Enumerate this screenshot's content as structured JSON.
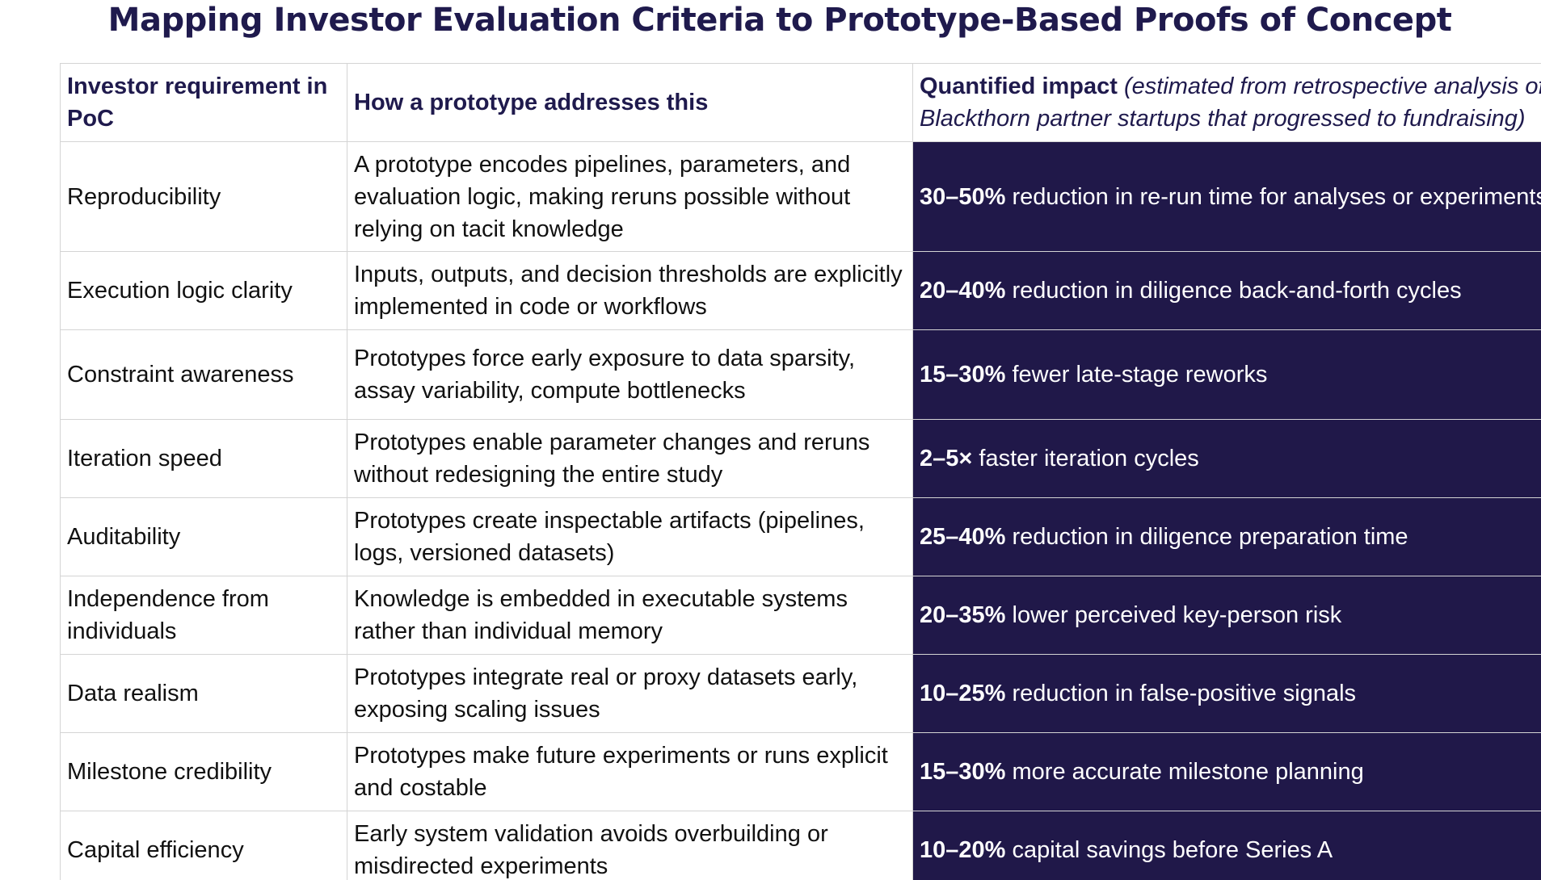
{
  "title": "Mapping Investor Evaluation Criteria to Prototype-Based Proofs of Concept",
  "headers": {
    "requirement": "Investor requirement in PoC",
    "how": "How a prototype addresses this",
    "impact_bold": "Quantified impact",
    "impact_note_line1": "(estimated from retrospective analysis of",
    "impact_note_line2": "Blackthorn partner startups that progressed to fundraising)"
  },
  "rows": [
    {
      "requirement": "Reproducibility",
      "how": "A prototype encodes pipelines, parameters, and evaluation logic, making reruns possible without relying on tacit knowledge",
      "impact_value": "30–50%",
      "impact_text": " reduction in re-run time for analyses or experiments"
    },
    {
      "requirement": "Execution logic clarity",
      "how": "Inputs, outputs, and decision thresholds are explicitly implemented in code or workflows",
      "impact_value": "20–40%",
      "impact_text": " reduction in diligence back-and-forth cycles"
    },
    {
      "requirement": "Constraint awareness",
      "how": "Prototypes force early exposure to data sparsity, assay variability, compute bottlenecks",
      "impact_value": "15–30%",
      "impact_text": " fewer late-stage reworks"
    },
    {
      "requirement": "Iteration speed",
      "how": "Prototypes enable parameter changes and reruns without redesigning the entire study",
      "impact_value": "2–5×",
      "impact_text": " faster iteration cycles"
    },
    {
      "requirement": "Auditability",
      "how": "Prototypes create inspectable artifacts (pipelines, logs, versioned datasets)",
      "impact_value": "25–40%",
      "impact_text": " reduction in diligence preparation time"
    },
    {
      "requirement": "Independence from individuals",
      "how": "Knowledge is embedded in executable systems rather than individual memory",
      "impact_value": "20–35%",
      "impact_text": " lower perceived key-person risk"
    },
    {
      "requirement": "Data realism",
      "how": "Prototypes integrate real or proxy datasets early, exposing scaling issues",
      "impact_value": "10–25%",
      "impact_text": " reduction in false-positive signals"
    },
    {
      "requirement": "Milestone credibility",
      "how": "Prototypes make future experiments or runs explicit and costable",
      "impact_value": "15–30%",
      "impact_text": " more accurate milestone planning"
    },
    {
      "requirement": "Capital efficiency",
      "how": "Early system validation avoids overbuilding or misdirected experiments",
      "impact_value": "10–20%",
      "impact_text": " capital savings before Series A"
    }
  ],
  "colors": {
    "title": "#1f1a4d",
    "header_text": "#1f1a4d",
    "impact_background": "#201849",
    "impact_text": "#ffffff"
  }
}
